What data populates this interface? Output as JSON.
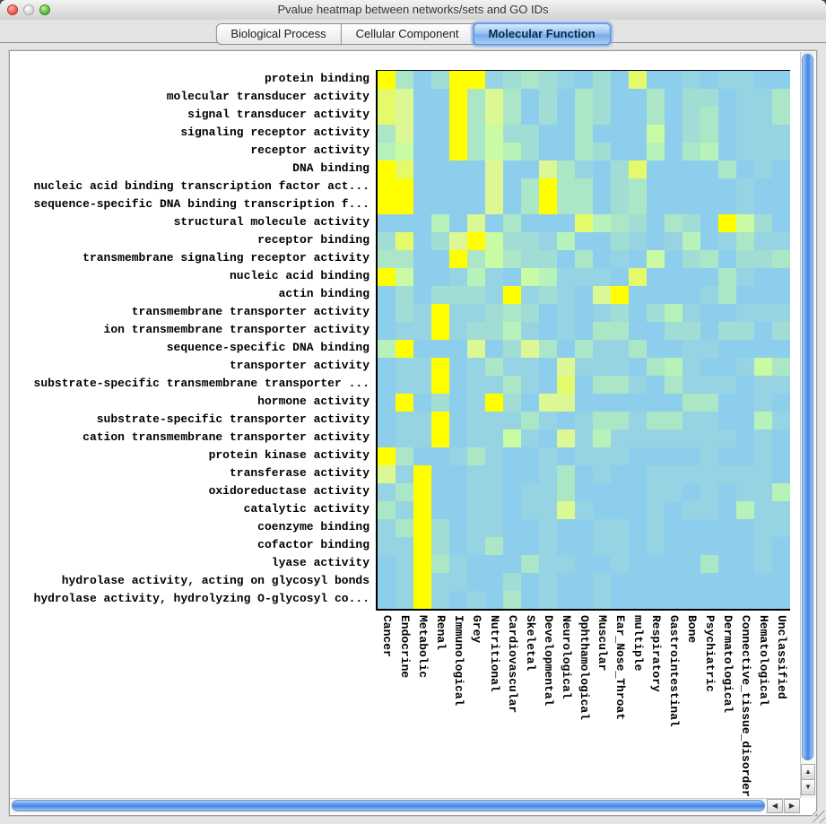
{
  "window": {
    "title": "Pvalue heatmap between networks/sets and GO IDs"
  },
  "tabs": [
    {
      "label": "Biological Process",
      "selected": false
    },
    {
      "label": "Cellular Component",
      "selected": false
    },
    {
      "label": "Molecular Function",
      "selected": true
    }
  ],
  "icons": {
    "close_button": "traffic-light-red",
    "minimize_button": "traffic-light-gray",
    "zoom_button": "traffic-light-green",
    "scroll_up": "▲",
    "scroll_down": "▼",
    "scroll_left": "◀",
    "scroll_right": "▶"
  },
  "colors": {
    "selected_tab_blue": "#78adec",
    "scrollbar_blue": "#4485e4",
    "heatmap_low_pvalue": "#FFFF00",
    "heatmap_high_pvalue": "#8DCEEC"
  },
  "chart_data": {
    "type": "heatmap",
    "title": "Pvalue heatmap between networks/sets and GO IDs",
    "xlabel": "",
    "ylabel": "",
    "legend": "none",
    "value_encoding": "palette index 0 (high p-value, light blue) to 8 (low p-value, bright yellow)",
    "rows": [
      "protein binding",
      "molecular transducer activity",
      "signal transducer activity",
      "signaling receptor activity",
      "receptor activity",
      "DNA binding",
      "nucleic acid binding transcription factor act...",
      "sequence-specific DNA binding transcription f...",
      "structural molecule activity",
      "receptor binding",
      "transmembrane signaling receptor activity",
      "nucleic acid binding",
      "actin binding",
      "transmembrane transporter activity",
      "ion transmembrane transporter activity",
      "sequence-specific DNA binding",
      "transporter activity",
      "substrate-specific transmembrane transporter ...",
      "hormone activity",
      "substrate-specific transporter activity",
      "cation transmembrane transporter activity",
      "protein kinase activity",
      "transferase activity",
      "oxidoreductase activity",
      "catalytic activity",
      "coenzyme binding",
      "cofactor binding",
      "lyase activity",
      "hydrolase activity, acting on glycosyl bonds",
      "hydrolase activity, hydrolyzing O-glycosyl co..."
    ],
    "columns": [
      "Cancer",
      "Endocrine",
      "Metabolic",
      "Renal",
      "Immunological",
      "Grey",
      "Nutritional",
      "Cardiovascular",
      "Skeletal",
      "Developmental",
      "Neurological",
      "Ophthamological",
      "Muscular",
      "Ear_Nose_Throat",
      "multiple",
      "Respiratory",
      "Gastrointestinal",
      "Bone",
      "Psychiatric",
      "Dermatological",
      "Connective_tissue_disorder",
      "Hematological",
      "Unclassified"
    ],
    "palette": {
      "0": "#8DCEEC",
      "1": "#97D4E3",
      "2": "#A2DDD5",
      "3": "#ABE6C6",
      "4": "#B7F2BA",
      "5": "#C9FAA4",
      "6": "#DBF895",
      "7": "#E5FA6B",
      "8": "#FFFF00"
    },
    "grid": [
      "83028812321020700101100",
      "76008363020320030220113",
      "76008363020320030230113",
      "36008352200300050230111",
      "45008354200320040340111",
      "87000060063102700003010",
      "88000060383302300000100",
      "88000060383302300000100",
      "00040603000743203208520",
      "27026852214002101401311",
      "33008353220301050230223",
      "85001410541110700003100",
      "02022218121068000013000",
      "02181123201012024100111",
      "01181224101033002202202",
      "48000602630311300110000",
      "01180131106111034100153",
      "01180113107033103111011",
      "08020182066000000330010",
      "01180111310133133110041",
      "01180115106141111111010",
      "83001310010111000010010",
      "61800110013010011111110",
      "13800110113000011010114",
      "31800110116100010110411",
      "13820110010011010000011",
      "11820130010011010000010",
      "01831000311001000030010",
      "01811002010010000000000",
      "01810103010010000000000"
    ]
  }
}
